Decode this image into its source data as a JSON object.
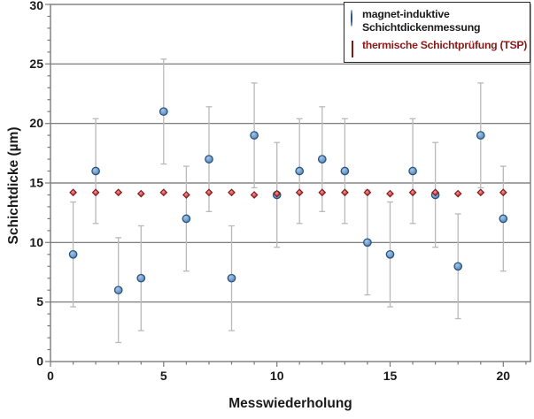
{
  "chart_data": {
    "type": "scatter",
    "title": "",
    "xlabel": "Messwiederholung",
    "ylabel": "Schichtdicke (µm)",
    "xlim": [
      0,
      21.2
    ],
    "ylim": [
      0,
      30
    ],
    "x_tick_labels": [
      0,
      5,
      10,
      15,
      20
    ],
    "y_tick_labels": [
      0,
      5,
      10,
      15,
      20,
      25,
      30
    ],
    "minor_tick_step": 1,
    "gridlines_y": [
      5,
      10,
      15,
      20,
      25
    ],
    "grid_on": true,
    "legend_position": "top-right",
    "x": [
      1,
      2,
      3,
      4,
      5,
      6,
      7,
      8,
      9,
      10,
      11,
      12,
      13,
      14,
      15,
      16,
      17,
      18,
      19,
      20
    ],
    "series": [
      {
        "name": "magnet-induktive Schichtdickenmessung",
        "marker": "circle",
        "values": [
          9,
          16,
          6,
          7,
          21,
          12,
          17,
          7,
          19,
          14,
          16,
          17,
          16,
          10,
          9,
          16,
          14,
          8,
          19,
          12
        ],
        "error_bar": 4.4,
        "marker_fill": "#4f81bd",
        "marker_highlight": "#a9c7e4",
        "marker_border": "#28557f",
        "error_color": "#b9b9b9",
        "label_color": "#1a1a1a"
      },
      {
        "name": "thermische Schichtprüfung (TSP)",
        "marker": "diamond",
        "values": [
          14.2,
          14.2,
          14.2,
          14.1,
          14.2,
          14.0,
          14.2,
          14.2,
          14.0,
          14.1,
          14.2,
          14.2,
          14.2,
          14.2,
          14.1,
          14.2,
          14.2,
          14.1,
          14.2,
          14.2
        ],
        "error_bar": 0,
        "marker_fill": "#d02a2a",
        "marker_highlight": "#ee9a9a",
        "marker_border": "#7e1a1a",
        "label_color": "#8b1a1a"
      }
    ],
    "colors": {
      "background": "#ffffff",
      "grid": "#6e6e6e",
      "axis": "#7a7a7a",
      "tick": "#7a7a7a",
      "tick_label": "#1a1a1a"
    }
  }
}
